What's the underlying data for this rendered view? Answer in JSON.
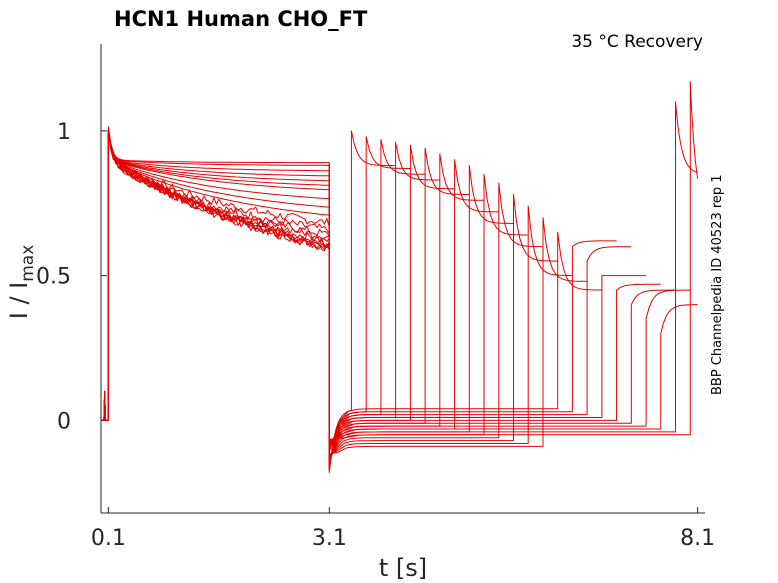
{
  "chart_data": {
    "type": "line",
    "title": "HCN1  Human  CHO_FT",
    "subtitle": "35 °C  Recovery",
    "side_note": "BBP Channelpedia ID 40523 rep 1",
    "xlabel": "t [s]",
    "ylabel_main": "I / I",
    "ylabel_sub": "max",
    "xlim": [
      0.0,
      8.2
    ],
    "ylim": [
      -0.32,
      1.3
    ],
    "x_ticks": [
      0.1,
      3.1,
      8.1
    ],
    "x_tick_labels": [
      "0.1",
      "3.1",
      "8.1"
    ],
    "y_ticks": [
      0,
      0.5,
      1
    ],
    "y_tick_labels": [
      "0",
      "0.5",
      "1"
    ],
    "grid": false,
    "color": "#e60000",
    "protocol": {
      "prepulse_start": 0.1,
      "prepulse_end": 3.1,
      "recovery_intervals": [
        0.3,
        0.5,
        0.7,
        0.9,
        1.1,
        1.3,
        1.5,
        1.7,
        1.9,
        2.1,
        2.3,
        2.5,
        2.7,
        2.9,
        3.1,
        3.3,
        3.5,
        3.7,
        3.9,
        4.1,
        4.3,
        4.5,
        4.7,
        4.9
      ],
      "prepulse_plateau_levels": [
        0.89,
        0.88,
        0.86,
        0.84,
        0.82,
        0.8,
        0.78,
        0.74,
        0.7,
        0.66,
        0.62,
        0.58,
        0.55,
        0.53,
        0.5,
        0.48,
        0.46,
        0.44,
        0.42,
        0.41
      ],
      "recovery_baseline_levels": [
        0.04,
        0.03,
        0.02,
        0.01,
        0.0,
        -0.01,
        -0.02,
        -0.03,
        -0.04,
        -0.05,
        -0.06,
        -0.07,
        -0.08,
        -0.09
      ],
      "test_peak_levels": [
        1.0,
        0.98,
        0.97,
        0.96,
        0.95,
        0.94,
        0.92,
        0.9,
        0.88,
        0.85,
        0.82,
        0.78,
        0.74,
        0.7,
        0.65,
        0.6,
        0.55,
        0.5,
        0.45,
        0.4,
        0.35,
        0.3,
        1.1,
        1.17
      ],
      "test_plateau_levels": [
        0.88,
        0.87,
        0.85,
        0.83,
        0.8,
        0.78,
        0.76,
        0.72,
        0.68,
        0.64,
        0.6,
        0.55,
        0.5,
        0.48,
        0.45,
        0.62,
        0.6,
        0.5,
        0.47,
        0.45,
        0.45,
        0.4,
        0.85,
        0.7
      ]
    }
  }
}
